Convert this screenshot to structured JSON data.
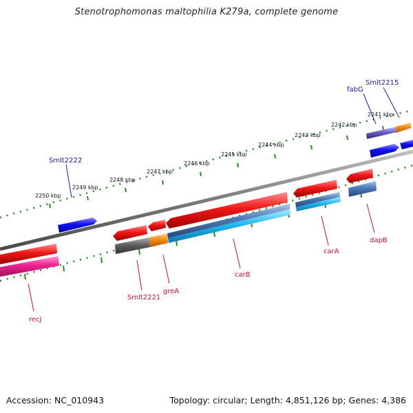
{
  "title": "Stenotrophomonas maltophilia K279a, complete genome",
  "footer": {
    "accession": "Accession: NC_010943",
    "stats": "Topology: circular; Length: 4,851,126 bp; Genes: 4,386"
  },
  "colors": {
    "backbone": "#8a8a8a",
    "tick": "#1e8c1e",
    "red_gene": "#e8101e",
    "blue_gene": "#1010e8",
    "magenta_gene": "#e8207a",
    "orange_gene": "#f28c10",
    "steel_gene": "#4a78b4",
    "cyan_gene": "#20b8f0",
    "gray_gene": "#606060",
    "red_label": "#c8102e",
    "blue_label": "#1a1aa8"
  },
  "kbp_ticks": [
    "2250 kbp",
    "2249 kbp",
    "2248 kbp",
    "2247 kbp",
    "2246 kbp",
    "2245 kbp",
    "2244 kbp",
    "2243 kbp",
    "2242 kbp",
    "2241 kbp"
  ],
  "gene_labels": {
    "recJ": "recJ",
    "smlt2221": "Smlt2221",
    "greA": "greA",
    "carB": "carB",
    "carA": "carA",
    "dapB": "dapB",
    "smlt2222": "Smlt2222",
    "fabG": "fabG",
    "smlt2215": "Smlt2215"
  }
}
